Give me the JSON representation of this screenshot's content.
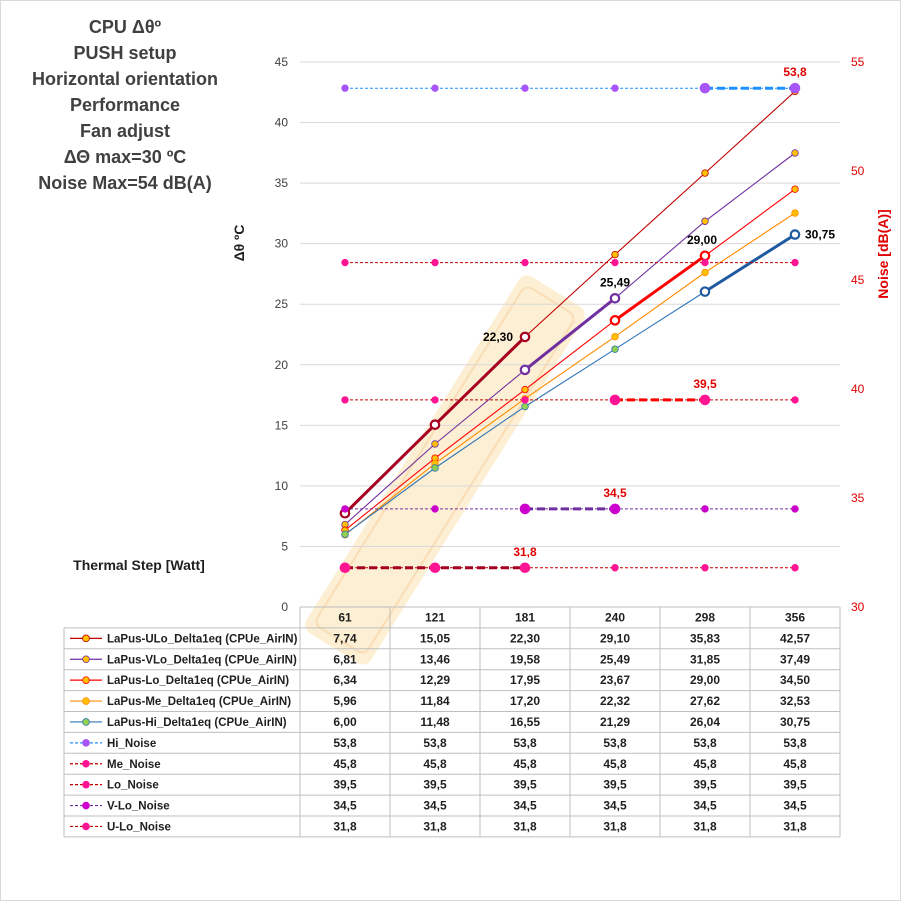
{
  "title_lines": [
    "CPU  Δθº",
    "PUSH setup",
    "Horizontal  orientation",
    "Performance",
    "Fan adjust",
    "ΔΘ max=30 ºC",
    "Noise Max=54 dB(A)"
  ],
  "x_axis_title": "Thermal Step [Watt]",
  "chart_data": {
    "type": "line",
    "categories": [
      "61",
      "121",
      "181",
      "240",
      "298",
      "356"
    ],
    "y_left": {
      "label": "Δθ ºC",
      "ticks": [
        "0",
        "5",
        "10",
        "15",
        "20",
        "25",
        "30",
        "35",
        "40",
        "45"
      ],
      "ylim": [
        0,
        45
      ]
    },
    "y_right": {
      "label": "Noise [dB(A)]",
      "ticks": [
        "30",
        "35",
        "40",
        "45",
        "50",
        "55"
      ],
      "ylim": [
        30,
        55
      ]
    },
    "grid": true,
    "series": [
      {
        "name": "LaPus-ULo_Delta1eq (CPUe_AirIN)",
        "axis": "left",
        "values": [
          7.74,
          15.05,
          22.3,
          29.1,
          35.83,
          42.57
        ],
        "display": [
          "7,74",
          "15,05",
          "22,30",
          "29,10",
          "35,83",
          "42,57"
        ],
        "color": "#c00000",
        "marker": "#ffc000",
        "bold_to": 2,
        "bold_color": "#a50021"
      },
      {
        "name": "LaPus-VLo_Delta1eq (CPUe_AirIN)",
        "axis": "left",
        "values": [
          6.81,
          13.46,
          19.58,
          25.49,
          31.85,
          37.49
        ],
        "display": [
          "6,81",
          "13,46",
          "19,58",
          "25,49",
          "31,85",
          "37,49"
        ],
        "color": "#7030a0",
        "marker": "#ffc000",
        "bold_from": 2,
        "bold_to": 3,
        "bold_color": "#7030a0"
      },
      {
        "name": "LaPus-Lo_Delta1eq (CPUe_AirIN)",
        "axis": "left",
        "values": [
          6.34,
          12.29,
          17.95,
          23.67,
          29.0,
          34.5
        ],
        "display": [
          "6,34",
          "12,29",
          "17,95",
          "23,67",
          "29,00",
          "34,50"
        ],
        "color": "#ff0000",
        "marker": "#ffc000",
        "bold_from": 3,
        "bold_to": 4,
        "bold_color": "#ff0000"
      },
      {
        "name": "LaPus-Me_Delta1eq (CPUe_AirIN)",
        "axis": "left",
        "values": [
          5.96,
          11.84,
          17.2,
          22.32,
          27.62,
          32.53
        ],
        "display": [
          "5,96",
          "11,84",
          "17,20",
          "22,32",
          "27,62",
          "32,53"
        ],
        "color": "#ff8c00",
        "marker": "#ffc000"
      },
      {
        "name": "LaPus-Hi_Delta1eq (CPUe_AirIN)",
        "axis": "left",
        "values": [
          6.0,
          11.48,
          16.55,
          21.29,
          26.04,
          30.75
        ],
        "display": [
          "6,00",
          "11,48",
          "16,55",
          "21,29",
          "26,04",
          "30,75"
        ],
        "color": "#2e75b6",
        "marker": "#92d050",
        "bold_from": 4,
        "bold_color": "#1f5aa0"
      },
      {
        "name": "Hi_Noise",
        "axis": "right",
        "values": [
          53.8,
          53.8,
          53.8,
          53.8,
          53.8,
          53.8
        ],
        "display": [
          "53,8",
          "53,8",
          "53,8",
          "53,8",
          "53,8",
          "53,8"
        ],
        "color": "#1e90ff",
        "marker": "#a855f7",
        "dashed": true,
        "bold_from": 4,
        "bold_color": "#1e90ff"
      },
      {
        "name": "Me_Noise",
        "axis": "right",
        "values": [
          45.8,
          45.8,
          45.8,
          45.8,
          45.8,
          45.8
        ],
        "display": [
          "45,8",
          "45,8",
          "45,8",
          "45,8",
          "45,8",
          "45,8"
        ],
        "color": "#c00000",
        "marker": "#ff1493",
        "dashed": true
      },
      {
        "name": "Lo_Noise",
        "axis": "right",
        "values": [
          39.5,
          39.5,
          39.5,
          39.5,
          39.5,
          39.5
        ],
        "display": [
          "39,5",
          "39,5",
          "39,5",
          "39,5",
          "39,5",
          "39,5"
        ],
        "color": "#c00000",
        "marker": "#ff1493",
        "dashed": true,
        "bold_from": 3,
        "bold_to": 4,
        "bold_color": "#ff0000"
      },
      {
        "name": "V-Lo_Noise",
        "axis": "right",
        "values": [
          34.5,
          34.5,
          34.5,
          34.5,
          34.5,
          34.5
        ],
        "display": [
          "34,5",
          "34,5",
          "34,5",
          "34,5",
          "34,5",
          "34,5"
        ],
        "color": "#7030a0",
        "marker": "#cc00cc",
        "dashed": true,
        "bold_from": 2,
        "bold_to": 3,
        "bold_color": "#7030a0"
      },
      {
        "name": "U-Lo_Noise",
        "axis": "right",
        "values": [
          31.8,
          31.8,
          31.8,
          31.8,
          31.8,
          31.8
        ],
        "display": [
          "31,8",
          "31,8",
          "31,8",
          "31,8",
          "31,8",
          "31,8"
        ],
        "color": "#c00000",
        "marker": "#ff1493",
        "dashed": true,
        "bold_to": 2,
        "bold_color": "#a50021"
      }
    ],
    "annotations": [
      {
        "text": "22,30",
        "series": 0,
        "index": 2,
        "color": "#000000",
        "pos": "left"
      },
      {
        "text": "25,49",
        "series": 1,
        "index": 3,
        "color": "#000000",
        "pos": "above"
      },
      {
        "text": "29,00",
        "series": 2,
        "index": 4,
        "color": "#000000",
        "pos": "above-left"
      },
      {
        "text": "30,75",
        "series": 4,
        "index": 5,
        "color": "#000000",
        "pos": "right"
      },
      {
        "text": "53,8",
        "series": 5,
        "index": 5,
        "color": "#e00000",
        "pos": "above"
      },
      {
        "text": "39,5",
        "series": 7,
        "index": 4,
        "color": "#e00000",
        "pos": "above"
      },
      {
        "text": "34,5",
        "series": 8,
        "index": 3,
        "color": "#e00000",
        "pos": "above"
      },
      {
        "text": "31,8",
        "series": 9,
        "index": 2,
        "color": "#e00000",
        "pos": "above"
      }
    ]
  }
}
